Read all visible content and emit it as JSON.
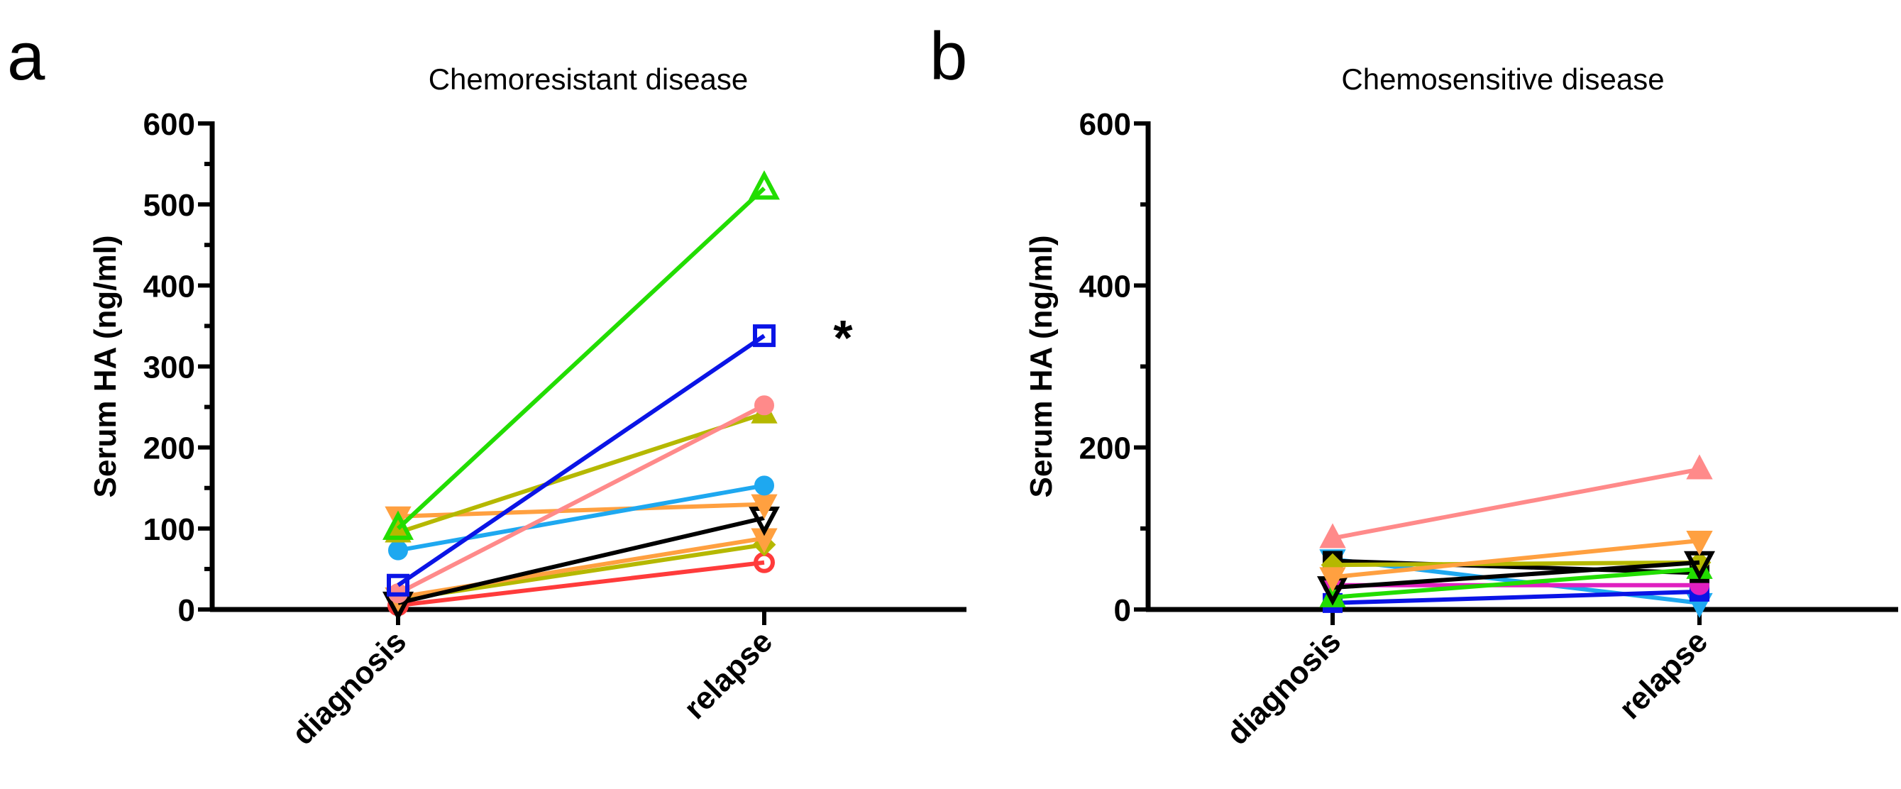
{
  "chart_data": [
    {
      "type": "line",
      "panel_label": "a",
      "title": "Chemoresistant disease",
      "xlabel": "",
      "ylabel": "Serum HA (ng/ml)",
      "categories": [
        "diagnosis",
        "relapse"
      ],
      "ylim": [
        0,
        600
      ],
      "yticks": [
        0,
        100,
        200,
        300,
        400,
        500,
        600
      ],
      "grid": false,
      "annotation": "*",
      "series": [
        {
          "color": "#ff3b3b",
          "marker": "circle",
          "filled": false,
          "values": [
            5,
            58
          ]
        },
        {
          "color": "#b5b800",
          "marker": "diamond",
          "filled": true,
          "values": [
            12,
            80
          ]
        },
        {
          "color": "#ffa040",
          "marker": "triangle-down",
          "filled": true,
          "values": [
            15,
            88
          ]
        },
        {
          "color": "#000000",
          "marker": "triangle-down",
          "filled": false,
          "values": [
            8,
            113
          ]
        },
        {
          "color": "#ffa040",
          "marker": "triangle-down",
          "filled": true,
          "values": [
            115,
            130
          ]
        },
        {
          "color": "#1ea8f0",
          "marker": "circle",
          "filled": true,
          "values": [
            73,
            153
          ]
        },
        {
          "color": "#b5b800",
          "marker": "triangle-up",
          "filled": true,
          "values": [
            95,
            242
          ]
        },
        {
          "color": "#ff8a8a",
          "marker": "circle",
          "filled": true,
          "values": [
            20,
            252
          ]
        },
        {
          "color": "#0a14e6",
          "marker": "square",
          "filled": false,
          "values": [
            30,
            338
          ]
        },
        {
          "color": "#22dd00",
          "marker": "triangle-up",
          "filled": false,
          "values": [
            100,
            520
          ]
        }
      ]
    },
    {
      "type": "line",
      "panel_label": "b",
      "title": "Chemosensitive disease",
      "xlabel": "",
      "ylabel": "Serum HA (ng/ml)",
      "categories": [
        "diagnosis",
        "relapse"
      ],
      "ylim": [
        0,
        600
      ],
      "yticks": [
        0,
        200,
        400,
        600
      ],
      "grid": false,
      "series": [
        {
          "color": "#1ea8f0",
          "marker": "triangle-down",
          "filled": true,
          "values": [
            62,
            8
          ]
        },
        {
          "color": "#0a14e6",
          "marker": "square",
          "filled": true,
          "values": [
            8,
            22
          ]
        },
        {
          "color": "#e020c0",
          "marker": "circle",
          "filled": true,
          "values": [
            30,
            30
          ]
        },
        {
          "color": "#000000",
          "marker": "square",
          "filled": true,
          "values": [
            60,
            45
          ]
        },
        {
          "color": "#22dd00",
          "marker": "triangle-up",
          "filled": true,
          "values": [
            15,
            50
          ]
        },
        {
          "color": "#b5b800",
          "marker": "diamond",
          "filled": true,
          "values": [
            55,
            58
          ]
        },
        {
          "color": "#000000",
          "marker": "triangle-down",
          "filled": false,
          "values": [
            27,
            58
          ]
        },
        {
          "color": "#ffa040",
          "marker": "triangle-down",
          "filled": true,
          "values": [
            40,
            85
          ]
        },
        {
          "color": "#ff8a8a",
          "marker": "triangle-up",
          "filled": true,
          "values": [
            88,
            173
          ]
        }
      ]
    }
  ]
}
